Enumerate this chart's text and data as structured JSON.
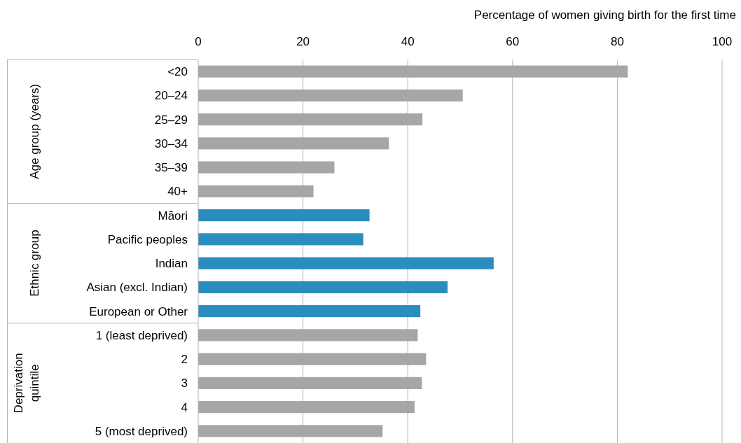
{
  "chart_data": {
    "type": "bar",
    "orientation": "horizontal",
    "xlabel": "Percentage of women giving birth for the first time",
    "categories": [
      "<20",
      "20–24",
      "25–29",
      "30–34",
      "35–39",
      "40+",
      "Māori",
      "Pacific peoples",
      "Indian",
      "Asian (excl. Indian)",
      "European or Other",
      "1 (least deprived)",
      "2",
      "3",
      "4",
      "5 (most deprived)"
    ],
    "values": [
      82,
      50.5,
      42.8,
      36.4,
      26,
      22,
      32.7,
      31.5,
      56.4,
      47.6,
      42.4,
      41.9,
      43.5,
      42.7,
      41.3,
      35.2
    ],
    "colors": [
      "#a6a6a6",
      "#a6a6a6",
      "#a6a6a6",
      "#a6a6a6",
      "#a6a6a6",
      "#a6a6a6",
      "#2b8cbe",
      "#2b8cbe",
      "#2b8cbe",
      "#2b8cbe",
      "#2b8cbe",
      "#a6a6a6",
      "#a6a6a6",
      "#a6a6a6",
      "#a6a6a6",
      "#a6a6a6"
    ],
    "xlim": [
      0,
      100
    ],
    "xticks": [
      0,
      20,
      40,
      60,
      80,
      100
    ],
    "grid": "x",
    "annotations": [
      "Age group (years)",
      "Ethnic group",
      "Deprivation quintile"
    ]
  }
}
